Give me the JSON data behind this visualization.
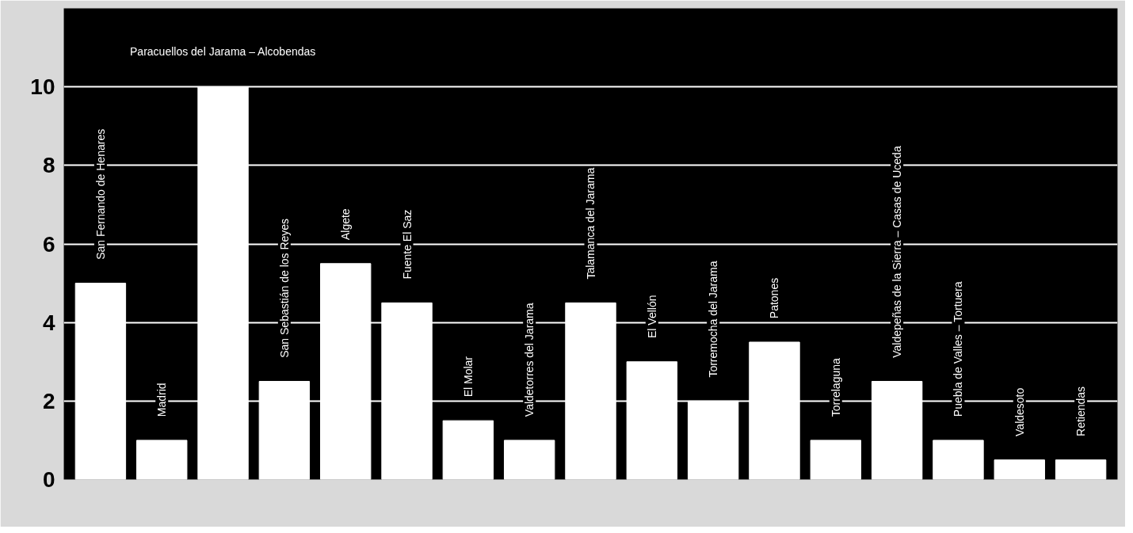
{
  "chart_data": {
    "type": "bar",
    "categories": [
      "San Fernando de Henares",
      "Madrid",
      "Paracuellos del Jarama – Alcobendas",
      "San Sebastián de los Reyes",
      "Algete",
      "Fuente El Saz",
      "El Molar",
      "Valdetorres del Jarama",
      "Talamanca del Jarama",
      "El Vellón",
      "Torremocha del Jarama",
      "Patones",
      "Torrelaguna",
      "Valdepeñas de la Sierra – Casas de Uceda",
      "Puebla de Valles – Tortuera",
      "Valdesoto",
      "Retiendas"
    ],
    "values": [
      5,
      1,
      10,
      2.5,
      5.5,
      4.5,
      1.5,
      1,
      4.5,
      3,
      2,
      3.5,
      1,
      2.5,
      1,
      0.5,
      0.5
    ],
    "color": "#ffffff",
    "ylim": [
      0,
      12
    ],
    "yticks": [
      0,
      2,
      4,
      6,
      8,
      10
    ],
    "grid": "y"
  }
}
